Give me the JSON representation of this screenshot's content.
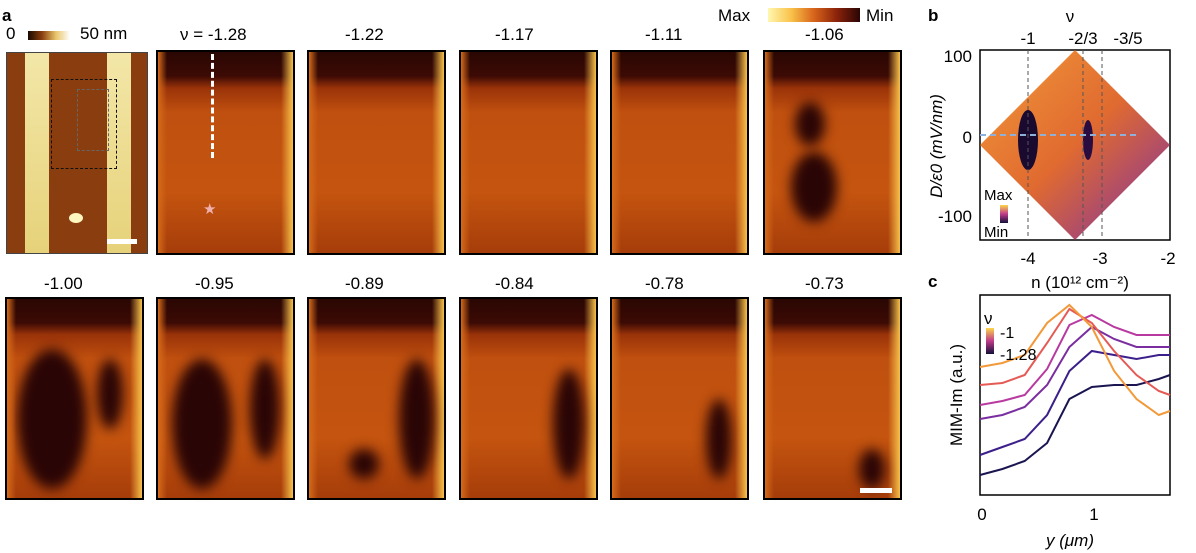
{
  "panel_a": {
    "letter": "a",
    "topo_scale": {
      "min": "0",
      "max": "50 nm"
    },
    "colorbar": {
      "max": "Max",
      "min": "Min"
    },
    "nu_labels": [
      "ν = -1.28",
      "-1.22",
      "-1.17",
      "-1.11",
      "-1.06",
      "-1.00",
      "-0.95",
      "-0.89",
      "-0.84",
      "-0.78",
      "-0.73"
    ]
  },
  "panel_b": {
    "letter": "b",
    "top_axis_title": "ν",
    "top_ticks": [
      "-1",
      "-2/3",
      "-3/5"
    ],
    "y_axis_title": "D/ε0 (mV/nm)",
    "y_ticks": [
      "100",
      "0",
      "-100"
    ],
    "x_ticks": [
      "-4",
      "-3",
      "-2"
    ],
    "x_axis_title": "n (10¹² cm⁻²)",
    "colorbar": {
      "max": "Max",
      "min": "Min"
    }
  },
  "panel_c": {
    "letter": "c",
    "y_axis_title": "MIM-Im (a.u.)",
    "x_axis_title": "y (μm)",
    "x_ticks": [
      "0",
      "1"
    ],
    "legend_title": "ν",
    "legend_max": "-1",
    "legend_min": "-1.28"
  },
  "chart_data": {
    "type": "line",
    "x": [
      0,
      0.2,
      0.4,
      0.6,
      0.8,
      1.0,
      1.2,
      1.4,
      1.6,
      1.7
    ],
    "series": [
      {
        "values": [
          0.1,
          0.13,
          0.17,
          0.26,
          0.48,
          0.54,
          0.55,
          0.55,
          0.58,
          0.6
        ]
      },
      {
        "values": [
          0.2,
          0.24,
          0.28,
          0.4,
          0.62,
          0.72,
          0.7,
          0.68,
          0.7,
          0.7
        ]
      },
      {
        "values": [
          0.38,
          0.4,
          0.44,
          0.55,
          0.74,
          0.84,
          0.78,
          0.74,
          0.74,
          0.74
        ]
      },
      {
        "values": [
          0.45,
          0.47,
          0.5,
          0.63,
          0.85,
          0.9,
          0.84,
          0.8,
          0.8,
          0.8
        ]
      },
      {
        "values": [
          0.55,
          0.56,
          0.6,
          0.76,
          0.93,
          0.86,
          0.72,
          0.6,
          0.52,
          0.5
        ]
      },
      {
        "values": [
          0.64,
          0.66,
          0.7,
          0.86,
          0.95,
          0.84,
          0.62,
          0.48,
          0.4,
          0.42
        ]
      }
    ],
    "colors": [
      "#1a1550",
      "#3c1f8a",
      "#7a2ea0",
      "#b83aa0",
      "#e55a55",
      "#f29a3a"
    ],
    "xlim": [
      0,
      1.7
    ],
    "xlabel": "y (μm)",
    "ylabel": "MIM-Im (a.u.)"
  }
}
